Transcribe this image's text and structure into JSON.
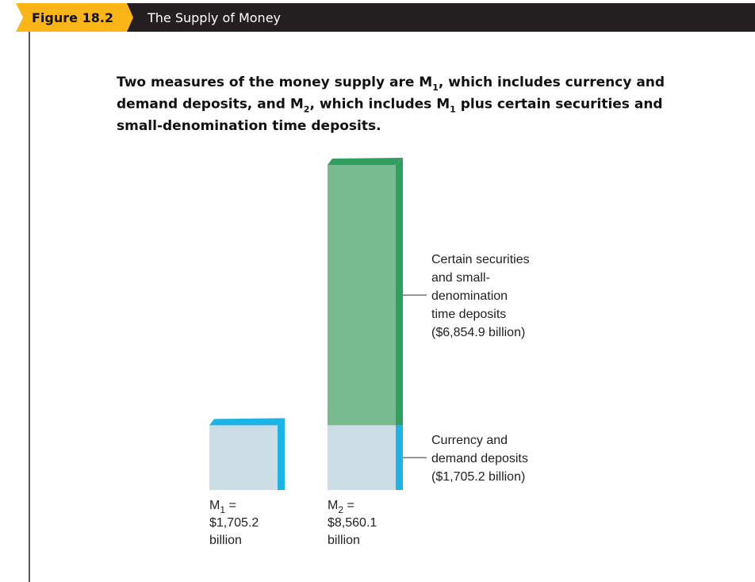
{
  "header": {
    "figure": "Figure 18.2",
    "title": "The Supply of Money"
  },
  "caption": [
    [
      {
        "text": "Two measures of the money supply are M"
      },
      {
        "sub": "1"
      },
      {
        "text": ", which includes currency and"
      }
    ],
    [
      {
        "text": "demand deposits, and M"
      },
      {
        "sub": "2"
      },
      {
        "text": ", which includes M"
      },
      {
        "sub": "1"
      },
      {
        "text": " plus certain securities and"
      }
    ],
    [
      {
        "text": "small-denomination time deposits."
      }
    ]
  ],
  "chart_data": {
    "type": "bar",
    "stacked": true,
    "bar_labels": [
      {
        "symbol": "M",
        "subscript": "1",
        "equals": "=",
        "amount": "$1,705.2",
        "unit": "billion"
      },
      {
        "symbol": "M",
        "subscript": "2",
        "equals": "=",
        "amount": "$8,560.1",
        "unit": "billion"
      }
    ],
    "series": [
      {
        "name_lines": [
          "Currency and",
          "demand deposits",
          "($1,705.2 billion)"
        ],
        "color": "#cddde5",
        "side_color": "#1cb4e6",
        "values": [
          1705.2,
          1705.2
        ]
      },
      {
        "name_lines": [
          "Certain securities",
          "and small-",
          "denomination",
          "time deposits",
          "($6,854.9 billion)"
        ],
        "color": "#78bb8f",
        "side_color": "#2f9e5e",
        "values": [
          null,
          6854.9
        ]
      }
    ]
  }
}
